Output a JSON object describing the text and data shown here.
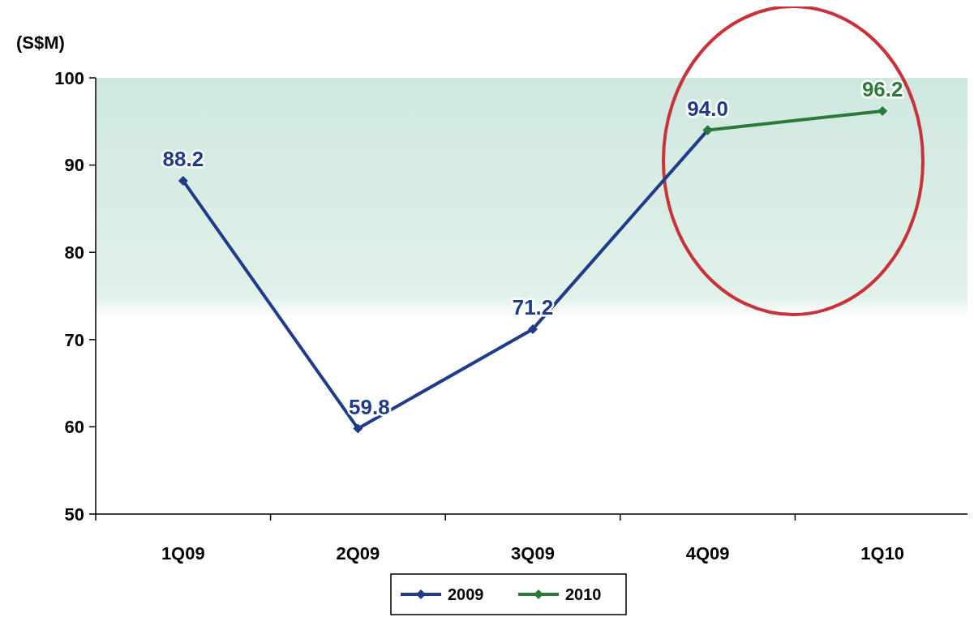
{
  "chart_data": {
    "type": "line",
    "ylabel": "(S$M)",
    "categories": [
      "1Q09",
      "2Q09",
      "3Q09",
      "4Q09",
      "1Q10"
    ],
    "series": [
      {
        "name": "2009",
        "color": "#1f3c88",
        "values": [
          88.2,
          59.8,
          71.2,
          94.0,
          null
        ],
        "value_labels": [
          "88.2",
          "59.8",
          "71.2",
          "94.0",
          null
        ]
      },
      {
        "name": "2010",
        "color": "#2a7a3b",
        "values": [
          null,
          null,
          null,
          94.0,
          96.2
        ],
        "value_labels": [
          null,
          null,
          null,
          null,
          "96.2"
        ]
      }
    ],
    "ylim": [
      50,
      100
    ],
    "yticks": [
      50,
      60,
      70,
      80,
      90,
      100
    ],
    "grid": false,
    "legend": "bottom",
    "marker": "diamond",
    "line_style": "solid"
  }
}
